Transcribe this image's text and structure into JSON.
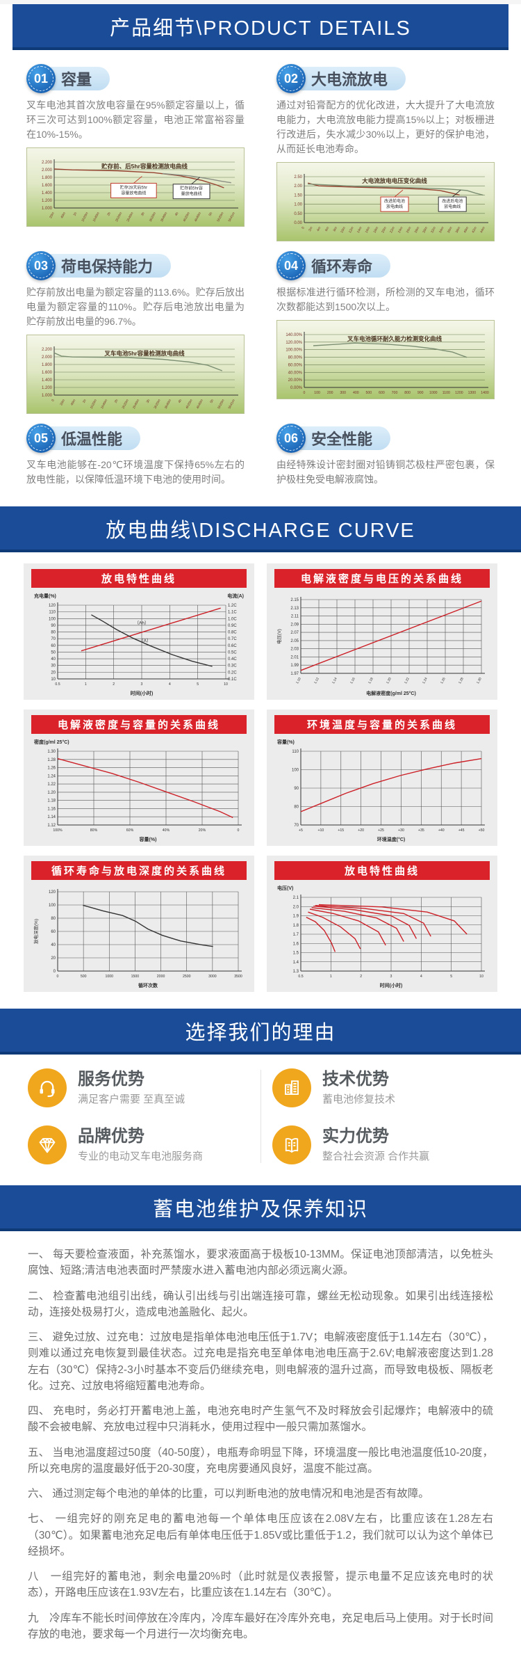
{
  "header": {
    "title": "产品细节\\PRODUCT DETAILS"
  },
  "discharge_header": {
    "title": "放电曲线\\DISCHARGE CURVE"
  },
  "reasons_header": {
    "title": "选择我们的理由"
  },
  "maintenance_header": {
    "title": "蓄电池维护及保养知识"
  },
  "colors": {
    "banner_blue": "#1a4c98",
    "red_bar": "#d9222a",
    "advantage_yellow": "#f0a61d",
    "curve_red": "#cc2027"
  },
  "features": [
    {
      "num": "01",
      "title": "容量",
      "desc": "叉车电池其首次放电容量在95%额定容量以上，循环三次可达到100%额定容量，电池正常富裕容量在10%-15%。"
    },
    {
      "num": "02",
      "title": "大电流放电",
      "desc": "通过对铅膏配方的优化改进，大大提升了大电流放电能力，大电流放电能力提高15%以上；对板栅进行改进后，失水减少30%以上，更好的保护电池，从而延长电池寿命。"
    },
    {
      "num": "03",
      "title": "荷电保持能力",
      "desc": "贮存前放出电量为额定容量的113.6%。贮存后放出电量为额定容量的110%。贮存后电池放出电量为贮存前放出电量的96.7%。"
    },
    {
      "num": "04",
      "title": "循环寿命",
      "desc": "根据标准进行循环检测，所检测的叉车电池，循环次数都能达到1500次以上。"
    },
    {
      "num": "05",
      "title": "低温性能",
      "desc": "叉车电池能够在-20℃环境温度下保持65%左右的放电性能，以保障低温环境下电池的使用时间。"
    },
    {
      "num": "06",
      "title": "安全性能",
      "desc": "由经特殊设计密封圈对铅铸铜芯极柱严密包裹，保护极柱免受电解液腐蚀。"
    }
  ],
  "chart_data": [
    {
      "type": "line",
      "style": "green",
      "inner_title": true,
      "grid": "h",
      "rotate_x": true,
      "title": "贮存前、后5hr容量检测放电曲线",
      "yticks": [
        "2.200",
        "2.000",
        "1.800",
        "1.600",
        "1.400",
        "1.200",
        "1.000"
      ],
      "ylim": [
        1.0,
        2.2
      ],
      "xticks": [
        "20m",
        "40m",
        "1h",
        "1h20m",
        "1h40m",
        "2h",
        "2h20m",
        "2h40m",
        "3h",
        "3h20m",
        "3h40m",
        "4h",
        "4h20m",
        "4h40m",
        "5h",
        "5h20m",
        "5h41m"
      ],
      "series": [
        {
          "name": "贮存28天后5hr容量放电曲线",
          "color": "#96412f",
          "pts": [
            [
              0,
              0.15
            ],
            [
              0.1,
              0.17
            ],
            [
              0.35,
              0.19
            ],
            [
              0.55,
              0.23
            ],
            [
              0.7,
              0.3
            ],
            [
              0.82,
              0.4
            ],
            [
              0.9,
              0.5
            ],
            [
              0.94,
              0.56
            ]
          ]
        },
        {
          "name": "贮存前5hr容量放电曲线",
          "color": "#8a8f84",
          "pts": [
            [
              0.6,
              0.25
            ],
            [
              0.75,
              0.3
            ],
            [
              0.85,
              0.36
            ],
            [
              0.93,
              0.42
            ],
            [
              0.98,
              0.45
            ]
          ]
        }
      ],
      "annotations": [
        {
          "fx": 0.44,
          "fy": 0.62,
          "label": "贮存28天后5hr|容量放电曲线",
          "border": "#c0392b"
        },
        {
          "fx": 0.76,
          "fy": 0.64,
          "label": "贮存前5hr容|量放电曲线",
          "border": "#333333"
        }
      ]
    },
    {
      "type": "line",
      "style": "green",
      "inner_title": true,
      "grid": "h",
      "rotate_x": true,
      "title": "大电流放电电压变化曲线",
      "yticks": [
        "2.50",
        "2.00",
        "1.50",
        "1.00",
        "0.50",
        "0.00"
      ],
      "ylim": [
        0,
        2.5
      ],
      "xticks": [
        "0",
        "2m",
        "4m",
        "6m",
        "8m",
        "10m",
        "12m",
        "14m",
        "16m",
        "18m",
        "20m",
        "22m",
        "24m",
        "26m",
        "28m",
        "30m",
        "32m",
        "34m",
        "36m",
        "38m",
        "40m",
        "42m",
        "44m"
      ],
      "series": [
        {
          "name": "改进前电池放电曲线",
          "color": "#96412f",
          "pts": [
            [
              0.02,
              0.14
            ],
            [
              0.08,
              0.2
            ],
            [
              0.3,
              0.23
            ],
            [
              0.5,
              0.25
            ],
            [
              0.65,
              0.27
            ],
            [
              0.75,
              0.3
            ],
            [
              0.82,
              0.36
            ],
            [
              0.86,
              0.4
            ]
          ]
        },
        {
          "name": "改进后电池放电曲线",
          "color": "#7c8f72",
          "pts": [
            [
              0.02,
              0.16
            ],
            [
              0.3,
              0.21
            ],
            [
              0.6,
              0.24
            ],
            [
              0.8,
              0.27
            ],
            [
              0.9,
              0.3
            ],
            [
              0.95,
              0.36
            ],
            [
              0.99,
              0.4
            ]
          ]
        }
      ],
      "annotations": [
        {
          "fx": 0.5,
          "fy": 0.6,
          "label": "改进前电池|放电曲线",
          "border": "#c0392b"
        },
        {
          "fx": 0.82,
          "fy": 0.6,
          "label": "改进后电池|放电曲线",
          "border": "#333333"
        }
      ]
    },
    {
      "type": "line",
      "style": "green",
      "inner_title": true,
      "grid": "h",
      "rotate_x": true,
      "title": "叉车电池5hr容量检测放电曲线",
      "yticks": [
        "2.200",
        "2.000",
        "1.800",
        "1.600",
        "1.400",
        "1.200",
        "1.000"
      ],
      "ylim": [
        1.0,
        2.2
      ],
      "xticks": [
        "0",
        "20m",
        "40m",
        "1h",
        "1h20m",
        "1h40m",
        "2h",
        "2h20m",
        "2h40m",
        "3h",
        "3h20m",
        "3h40m",
        "4h",
        "4h20m",
        "4h40m",
        "5h",
        "5h20m",
        "5h41m"
      ],
      "series": [
        {
          "name": "5hr容量检测放电曲线",
          "color": "#7c8f72",
          "pts": [
            [
              0,
              0.08
            ],
            [
              0.04,
              0.15
            ],
            [
              0.1,
              0.17
            ],
            [
              0.4,
              0.18
            ],
            [
              0.6,
              0.22
            ],
            [
              0.75,
              0.28
            ],
            [
              0.85,
              0.35
            ],
            [
              0.93,
              0.47
            ]
          ]
        }
      ]
    },
    {
      "type": "line",
      "style": "green",
      "inner_title": true,
      "grid": "h",
      "rotate_x": false,
      "title": "叉车电池循环耐久能力检测变化曲线",
      "yticks": [
        "140.00%",
        "120.00%",
        "100.00%",
        "80.00%",
        "60.00%",
        "40.00%",
        "20.00%",
        "0.00%"
      ],
      "ylim": [
        0,
        140
      ],
      "xticks": [
        "0",
        "100",
        "200",
        "300",
        "400",
        "500",
        "600",
        "700",
        "800",
        "900",
        "1000",
        "1100",
        "1200",
        "1300",
        "1400"
      ],
      "series": [
        {
          "name": "循环耐久能力",
          "color": "#7c8f72",
          "pts": [
            [
              0.05,
              0.21
            ],
            [
              0.15,
              0.19
            ],
            [
              0.28,
              0.16
            ],
            [
              0.45,
              0.18
            ],
            [
              0.6,
              0.22
            ],
            [
              0.72,
              0.27
            ],
            [
              0.82,
              0.33
            ],
            [
              0.9,
              0.43
            ]
          ]
        }
      ]
    },
    {
      "type": "line",
      "style": "red",
      "grid": "both",
      "title": "放电特性曲线",
      "ylabel_top": "充电量(%)",
      "ylabel_right_top": "电流(A)",
      "yticks": [
        "120",
        "110",
        "100",
        "90",
        "80",
        "70",
        "60",
        "50",
        "40",
        "30",
        "20",
        "10"
      ],
      "right_yticks": [
        "1.2C",
        "1.1C",
        "1.0C",
        "0.9C",
        "0.8C",
        "0.7C",
        "0.6C",
        "0.5C",
        "0.4C",
        "0.3C",
        "0.2C",
        "0.1C"
      ],
      "xticks": [
        "0.5",
        "1",
        "2",
        "3",
        "4",
        "5",
        "10"
      ],
      "xlabel": "时间(小时)",
      "series": [
        {
          "name": "充电量(Ah)",
          "color": "#cc2027",
          "pts": [
            [
              0.14,
              0.62
            ],
            [
              0.97,
              0.04
            ]
          ]
        },
        {
          "name": "电流(A)",
          "color": "#333333",
          "pts": [
            [
              0.2,
              0.13
            ],
            [
              0.27,
              0.22
            ],
            [
              0.35,
              0.33
            ],
            [
              0.45,
              0.45
            ],
            [
              0.55,
              0.55
            ],
            [
              0.68,
              0.67
            ],
            [
              0.8,
              0.76
            ],
            [
              0.92,
              0.83
            ]
          ]
        }
      ],
      "annotations": [
        {
          "fx": 0.5,
          "fy": 0.26,
          "label": "（Ah）",
          "border": "none"
        },
        {
          "fx": 0.52,
          "fy": 0.5,
          "label": "（A）",
          "border": "none"
        }
      ]
    },
    {
      "type": "line",
      "style": "red",
      "grid": "both",
      "rotate_x": true,
      "title": "电解液密度与电压的关系曲线",
      "ylabel_side": "电压(V)",
      "yticks": [
        "2.15",
        "2.13",
        "2.11",
        "2.09",
        "2.07",
        "2.05",
        "2.03",
        "2.01",
        "1.99",
        "1.97"
      ],
      "xticks": [
        "1.10",
        "1.12",
        "1.14",
        "1.16",
        "1.18",
        "1.20",
        "1.22",
        "1.24",
        "1.26",
        "1.28",
        "1.30"
      ],
      "xlabel": "电解液密度(g/ml 25°C)",
      "series": [
        {
          "name": "密度-电压",
          "color": "#cc2027",
          "pts": [
            [
              0,
              0.96
            ],
            [
              1,
              0.02
            ]
          ]
        }
      ]
    },
    {
      "type": "line",
      "style": "red",
      "grid": "both",
      "title": "电解液密度与容量的关系曲线",
      "ylabel_top": "密度(g/ml 25°C)",
      "yticks": [
        "1.30",
        "1.28",
        "1.26",
        "1.24",
        "1.22",
        "1.20",
        "1.18",
        "1.16",
        "1.14",
        "1.12"
      ],
      "xticks": [
        "100%",
        "80%",
        "60%",
        "40%",
        "20%",
        "0"
      ],
      "xlabel": "容量(%)",
      "series": [
        {
          "name": "密度-容量",
          "color": "#cc2027",
          "pts": [
            [
              0,
              0.1
            ],
            [
              0.15,
              0.2
            ],
            [
              0.3,
              0.3
            ],
            [
              0.45,
              0.42
            ],
            [
              0.6,
              0.55
            ],
            [
              0.75,
              0.68
            ],
            [
              0.9,
              0.82
            ],
            [
              0.97,
              0.9
            ]
          ]
        }
      ]
    },
    {
      "type": "line",
      "style": "red",
      "grid": "both",
      "title": "环境温度与容量的关系曲线",
      "ylabel_top": "容量(%)",
      "yticks": [
        "110",
        "100",
        "90",
        "80",
        "70"
      ],
      "xticks": [
        "+5",
        "+10",
        "+15",
        "+20",
        "+25",
        "+30",
        "+35",
        "+40",
        "+45",
        "+50"
      ],
      "xlabel": "环境温度(°C)",
      "series": [
        {
          "name": "温度-容量",
          "color": "#cc2027",
          "pts": [
            [
              0,
              0.82
            ],
            [
              0.12,
              0.7
            ],
            [
              0.25,
              0.57
            ],
            [
              0.4,
              0.44
            ],
            [
              0.55,
              0.33
            ],
            [
              0.7,
              0.24
            ],
            [
              0.85,
              0.16
            ],
            [
              1,
              0.1
            ]
          ]
        }
      ]
    },
    {
      "type": "line",
      "style": "red",
      "grid": "both",
      "title": "循环寿命与放电深度的关系曲线",
      "ylabel_side": "放电深度(%)",
      "yticks": [
        "120",
        "100",
        "80",
        "60",
        "40",
        "20",
        "0"
      ],
      "xticks": [
        "0",
        "500",
        "1000",
        "1500",
        "2000",
        "2500",
        "3000",
        "3500"
      ],
      "xlabel": "循环次数",
      "series": [
        {
          "name": "放电深度-循环次数",
          "color": "#333333",
          "pts": [
            [
              0.14,
              0.17
            ],
            [
              0.25,
              0.24
            ],
            [
              0.36,
              0.3
            ],
            [
              0.43,
              0.37
            ],
            [
              0.5,
              0.47
            ],
            [
              0.58,
              0.55
            ],
            [
              0.68,
              0.62
            ],
            [
              0.8,
              0.67
            ],
            [
              0.86,
              0.69
            ]
          ]
        }
      ]
    },
    {
      "type": "line",
      "style": "red",
      "grid": "both",
      "title": "放电特性曲线",
      "ylabel_top": "电压(V)",
      "yticks": [
        "2.1",
        "2.0",
        "1.9",
        "1.8",
        "1.7",
        "1.6",
        "1.5",
        "1.4",
        "1.3"
      ],
      "xticks": [
        "0.5",
        "1",
        "2",
        "3",
        "4",
        "5",
        "10"
      ],
      "xlabel": "时间(小时)",
      "series": [
        {
          "name": "0.5h率",
          "color": "#cc2027",
          "pts": [
            [
              0.03,
              0.27
            ],
            [
              0.08,
              0.33
            ],
            [
              0.13,
              0.45
            ],
            [
              0.17,
              0.62
            ],
            [
              0.19,
              0.74
            ]
          ]
        },
        {
          "name": "1h率",
          "color": "#cc2027",
          "pts": [
            [
              0.04,
              0.2
            ],
            [
              0.12,
              0.27
            ],
            [
              0.22,
              0.4
            ],
            [
              0.3,
              0.56
            ],
            [
              0.33,
              0.7
            ]
          ]
        },
        {
          "name": "2h率",
          "color": "#cc2027",
          "pts": [
            [
              0.05,
              0.16
            ],
            [
              0.18,
              0.22
            ],
            [
              0.32,
              0.32
            ],
            [
              0.43,
              0.47
            ],
            [
              0.47,
              0.65
            ]
          ]
        },
        {
          "name": "3h率",
          "color": "#cc2027",
          "pts": [
            [
              0.06,
              0.14
            ],
            [
              0.24,
              0.19
            ],
            [
              0.42,
              0.28
            ],
            [
              0.53,
              0.42
            ],
            [
              0.57,
              0.6
            ]
          ]
        },
        {
          "name": "4h率",
          "color": "#cc2027",
          "pts": [
            [
              0.07,
              0.12
            ],
            [
              0.3,
              0.17
            ],
            [
              0.5,
              0.25
            ],
            [
              0.6,
              0.38
            ],
            [
              0.64,
              0.56
            ]
          ]
        },
        {
          "name": "5h率",
          "color": "#cc2027",
          "pts": [
            [
              0.08,
              0.11
            ],
            [
              0.35,
              0.15
            ],
            [
              0.57,
              0.22
            ],
            [
              0.68,
              0.35
            ],
            [
              0.72,
              0.53
            ]
          ]
        },
        {
          "name": "10h率",
          "color": "#cc2027",
          "pts": [
            [
              0.1,
              0.1
            ],
            [
              0.45,
              0.13
            ],
            [
              0.7,
              0.2
            ],
            [
              0.85,
              0.32
            ],
            [
              0.92,
              0.5
            ]
          ]
        }
      ]
    }
  ],
  "advantages": [
    {
      "icon": "headset-icon",
      "title": "服务优势",
      "desc": "满足客户需要 至真至诚"
    },
    {
      "icon": "building-icon",
      "title": "技术优势",
      "desc": "蓄电池修复技术"
    },
    {
      "icon": "diamond-icon",
      "title": "品牌优势",
      "desc": "专业的电动叉车电池服务商"
    },
    {
      "icon": "book-icon",
      "title": "实力优势",
      "desc": "整合社会资源 合作共赢"
    }
  ],
  "maintenance": [
    "一、 每天要检查液面，补充蒸馏水，要求液面高于极板10-13MM。保证电池顶部清洁，以免桩头腐蚀、短路;清洁电池表面时严禁废水进入蓄电池内部必须远离火源。",
    "二、 检查蓄电池组引出线，确认引出线与引出端连接可靠，螺丝无松动现象。如果引出线连接松动，连接处极易打火，造成电池盖融化、起火。",
    "三、 避免过放、过充电：过放电是指单体电池电压低于1.7V；电解液密度低于1.14左右（30℃），则难以通过充电恢复到最佳状态。过充电是指充电至单体电池电压高于2.6V;电解液密度达到1.28左右（30℃）保持2-3小时基本不变后仍继续充电，则电解液的温升过高，而导致电极板、隔板老化。过充、过放电将缩短蓄电池寿命。",
    "四、 充电时，务必打开蓄电池上盖，电池充电时产生氢气不及时释放会引起爆炸；电解液中的硫酸不会被电解、充放电过程中只消耗水，使用过程中一般只需加蒸馏水。",
    "五、 当电池温度超过50度（40-50度），电瓶寿命明显下降，环境温度一般比电池温度低10-20度，所以充电房的温度最好低于20-30度，充电房要通风良好，温度不能过高。",
    "六、 通过测定每个电池的单体的比重，可以判断电池的放电情况和电池是否有故障。",
    "七、 一组完好的刚充足电的蓄电池每一个单体电压应该在2.08V左右，比重应该在1.28左右（30℃）。如果蓄电池充足电后有单体电压低于1.85V或比重低于1.2，我们就可以认为这个单体已经损坏。",
    "八　一组完好的蓄电池，剩余电量20%时（此时就是仪表报警，提示电量不足应该充电时的状态），开路电压应该在1.93V左右，比重应该在1.14左右（30℃）。",
    "九　冷库车不能长时间停放在冷库内，冷库车最好在冷库外充电，充足电后马上使用。对于长时间存放的电池，要求每一个月进行一次均衡充电。"
  ]
}
